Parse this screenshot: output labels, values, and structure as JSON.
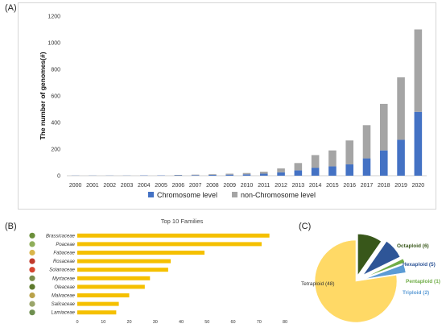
{
  "panels": {
    "a": "(A)",
    "b": "(B)",
    "c": "(C)"
  },
  "colors": {
    "chromosome": "#4472c4",
    "non_chromosome": "#a5a5a5",
    "family_bar": "#f5c000",
    "tetraploid": "#ffd966",
    "octaploid": "#38571a",
    "hexaploid": "#2e5597",
    "pentaploid": "#70ad47",
    "triploid": "#5b9bd5"
  },
  "chart_data": [
    {
      "type": "bar",
      "stacked": true,
      "ylabel": "The number of genomes(#)",
      "ylim": [
        0,
        1200
      ],
      "yticks": [
        0,
        200,
        400,
        600,
        800,
        1000,
        1200
      ],
      "categories": [
        "2000",
        "2001",
        "2002",
        "2003",
        "2004",
        "2005",
        "2006",
        "2007",
        "2008",
        "2009",
        "2010",
        "2011",
        "2012",
        "2013",
        "2014",
        "2015",
        "2016",
        "2017",
        "2018",
        "2019",
        "2020"
      ],
      "series": [
        {
          "name": "Chromosome level",
          "values": [
            1,
            1,
            1,
            1,
            2,
            2,
            3,
            4,
            6,
            8,
            10,
            15,
            25,
            40,
            60,
            70,
            85,
            130,
            190,
            270,
            480
          ]
        },
        {
          "name": "non-Chromosome level",
          "values": [
            0,
            0,
            0,
            0,
            0,
            0,
            3,
            4,
            5,
            7,
            10,
            15,
            30,
            55,
            95,
            120,
            180,
            250,
            350,
            470,
            620
          ]
        }
      ],
      "legend_position": "bottom"
    },
    {
      "type": "bar",
      "orientation": "horizontal",
      "title": "Top 10 Families",
      "categories": [
        "Brassicaceae",
        "Poaceae",
        "Fabaceae",
        "Rosaceae",
        "Solanaceae",
        "Myrtaceae",
        "Oleaceae",
        "Malvaceae",
        "Salicaceae",
        "Lamiaceae"
      ],
      "values": [
        74,
        71,
        49,
        36,
        35,
        28,
        26,
        20,
        16,
        15
      ],
      "xlim": [
        0,
        80
      ],
      "xticks": [
        0,
        10,
        20,
        30,
        40,
        50,
        60,
        70,
        80
      ]
    },
    {
      "type": "pie",
      "slices": [
        {
          "name": "Tetraploid",
          "value": 48,
          "label": "Tetraploid (48)"
        },
        {
          "name": "Octaploid",
          "value": 6,
          "label": "Octaploid (6)"
        },
        {
          "name": "Hexaploid",
          "value": 5,
          "label": "Hexaploid (5)"
        },
        {
          "name": "Pentaploid",
          "value": 1,
          "label": "Pentaploid (1)"
        },
        {
          "name": "Triploid",
          "value": 2,
          "label": "Triploid (2)"
        }
      ]
    }
  ]
}
